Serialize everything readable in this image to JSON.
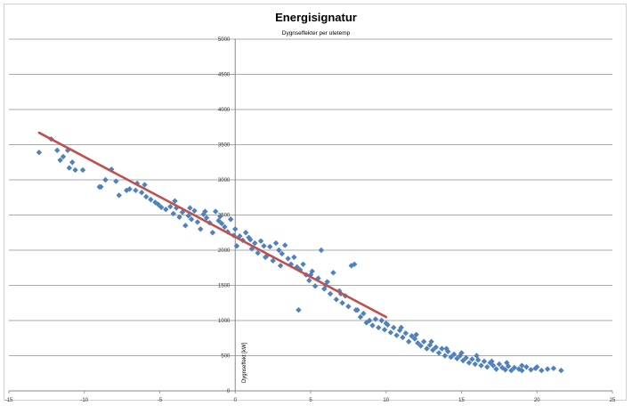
{
  "chart_data": {
    "type": "scatter",
    "title": "Energisignatur",
    "subtitle": "Dygnseffekter per utetemp",
    "xlabel": "",
    "ylabel": "Dygnseffekt [kW]",
    "xlim": [
      -15,
      25
    ],
    "ylim": [
      0,
      5000
    ],
    "xticks": [
      -15,
      -10,
      -5,
      0,
      5,
      10,
      15,
      20,
      25
    ],
    "yticks": [
      0,
      500,
      1000,
      1500,
      2000,
      2500,
      3000,
      3500,
      4000,
      4500,
      5000
    ],
    "grid": "horizontal",
    "legend": "none",
    "series": [
      {
        "kind": "points",
        "color": "#4f81bd",
        "points": [
          [
            -13.0,
            3390
          ],
          [
            -12.2,
            3580
          ],
          [
            -11.8,
            3420
          ],
          [
            -11.6,
            3280
          ],
          [
            -11.4,
            3330
          ],
          [
            -11.1,
            3420
          ],
          [
            -11.0,
            3170
          ],
          [
            -10.8,
            3250
          ],
          [
            -10.6,
            3140
          ],
          [
            -10.1,
            3140
          ],
          [
            -8.9,
            2900
          ],
          [
            -8.6,
            3000
          ],
          [
            -8.2,
            3150
          ],
          [
            -7.9,
            2980
          ],
          [
            -7.7,
            2780
          ],
          [
            -7.2,
            2850
          ],
          [
            -7.0,
            2870
          ],
          [
            -6.6,
            2850
          ],
          [
            -6.2,
            2820
          ],
          [
            -6.0,
            2930
          ],
          [
            -5.9,
            2760
          ],
          [
            -5.6,
            2720
          ],
          [
            -5.3,
            2680
          ],
          [
            -5.1,
            2650
          ],
          [
            -4.9,
            2610
          ],
          [
            -4.6,
            2580
          ],
          [
            -4.3,
            2620
          ],
          [
            -4.1,
            2520
          ],
          [
            -3.9,
            2600
          ],
          [
            -3.7,
            2470
          ],
          [
            -3.5,
            2540
          ],
          [
            -3.3,
            2350
          ],
          [
            -3.1,
            2490
          ],
          [
            -2.9,
            2440
          ],
          [
            -2.7,
            2560
          ],
          [
            -2.5,
            2400
          ],
          [
            -2.3,
            2300
          ],
          [
            -2.1,
            2510
          ],
          [
            -1.9,
            2460
          ],
          [
            -1.7,
            2390
          ],
          [
            -1.5,
            2250
          ],
          [
            -1.3,
            2550
          ],
          [
            -1.1,
            2420
          ],
          [
            -0.9,
            2380
          ],
          [
            -0.7,
            2330
          ],
          [
            -0.5,
            2260
          ],
          [
            -0.3,
            2440
          ],
          [
            -0.1,
            2210
          ],
          [
            0.1,
            2060
          ],
          [
            0.3,
            2200
          ],
          [
            0.5,
            2140
          ],
          [
            0.7,
            2250
          ],
          [
            0.9,
            2180
          ],
          [
            1.1,
            2020
          ],
          [
            1.3,
            2100
          ],
          [
            1.5,
            1960
          ],
          [
            1.7,
            2130
          ],
          [
            1.9,
            2060
          ],
          [
            2.1,
            1920
          ],
          [
            2.3,
            2050
          ],
          [
            2.5,
            1850
          ],
          [
            2.7,
            2100
          ],
          [
            2.9,
            2000
          ],
          [
            3.1,
            1950
          ],
          [
            3.3,
            2070
          ],
          [
            3.5,
            1880
          ],
          [
            3.7,
            1800
          ],
          [
            3.9,
            1900
          ],
          [
            4.1,
            1760
          ],
          [
            4.3,
            1720
          ],
          [
            4.5,
            1800
          ],
          [
            4.7,
            1650
          ],
          [
            4.9,
            1570
          ],
          [
            4.2,
            1150
          ],
          [
            5.1,
            1700
          ],
          [
            5.3,
            1490
          ],
          [
            5.5,
            1600
          ],
          [
            5.7,
            2000
          ],
          [
            5.9,
            1450
          ],
          [
            6.1,
            1550
          ],
          [
            6.3,
            1380
          ],
          [
            6.5,
            1680
          ],
          [
            6.7,
            1300
          ],
          [
            6.9,
            1420
          ],
          [
            7.1,
            1250
          ],
          [
            7.3,
            1350
          ],
          [
            7.5,
            1200
          ],
          [
            7.7,
            1780
          ],
          [
            7.9,
            1800
          ],
          [
            8.1,
            1150
          ],
          [
            8.3,
            1050
          ],
          [
            8.5,
            1100
          ],
          [
            8.7,
            970
          ],
          [
            8.9,
            1000
          ],
          [
            9.1,
            930
          ],
          [
            9.3,
            1020
          ],
          [
            9.5,
            900
          ],
          [
            9.7,
            1000
          ],
          [
            9.9,
            870
          ],
          [
            10.1,
            940
          ],
          [
            10.3,
            830
          ],
          [
            10.5,
            900
          ],
          [
            10.7,
            790
          ],
          [
            10.9,
            860
          ],
          [
            11.1,
            760
          ],
          [
            11.3,
            820
          ],
          [
            11.5,
            700
          ],
          [
            11.7,
            780
          ],
          [
            11.9,
            740
          ],
          [
            12.1,
            680
          ],
          [
            12.3,
            640
          ],
          [
            12.5,
            700
          ],
          [
            12.7,
            600
          ],
          [
            12.9,
            650
          ],
          [
            13.1,
            580
          ],
          [
            13.3,
            620
          ],
          [
            13.5,
            540
          ],
          [
            13.7,
            600
          ],
          [
            13.9,
            500
          ],
          [
            14.1,
            560
          ],
          [
            14.3,
            480
          ],
          [
            14.5,
            520
          ],
          [
            14.7,
            460
          ],
          [
            14.9,
            500
          ],
          [
            15.1,
            430
          ],
          [
            15.3,
            470
          ],
          [
            15.5,
            400
          ],
          [
            15.7,
            450
          ],
          [
            15.9,
            380
          ],
          [
            16.1,
            440
          ],
          [
            16.3,
            360
          ],
          [
            16.5,
            420
          ],
          [
            16.7,
            340
          ],
          [
            16.9,
            400
          ],
          [
            17.1,
            360
          ],
          [
            17.3,
            310
          ],
          [
            17.5,
            380
          ],
          [
            17.7,
            330
          ],
          [
            17.9,
            300
          ],
          [
            18.1,
            350
          ],
          [
            18.3,
            290
          ],
          [
            18.5,
            330
          ],
          [
            18.8,
            310
          ],
          [
            19.0,
            290
          ],
          [
            19.3,
            340
          ],
          [
            19.6,
            300
          ],
          [
            19.9,
            320
          ],
          [
            20.3,
            290
          ],
          [
            20.7,
            310
          ],
          [
            21.1,
            320
          ],
          [
            21.6,
            290
          ],
          [
            10.0,
            960
          ],
          [
            8.0,
            1150
          ],
          [
            7.0,
            1380
          ],
          [
            6.0,
            1500
          ],
          [
            5.0,
            1650
          ],
          [
            3.0,
            1780
          ],
          [
            2.0,
            1900
          ],
          [
            1.0,
            2150
          ],
          [
            0.0,
            2300
          ],
          [
            -1.0,
            2480
          ],
          [
            -2.0,
            2550
          ],
          [
            -3.0,
            2600
          ],
          [
            -4.0,
            2700
          ],
          [
            -6.5,
            2950
          ],
          [
            -9.0,
            2900
          ],
          [
            11.0,
            900
          ],
          [
            12.0,
            800
          ],
          [
            13.0,
            700
          ],
          [
            14.0,
            600
          ],
          [
            15.0,
            540
          ],
          [
            16.0,
            500
          ],
          [
            17.0,
            420
          ],
          [
            18.0,
            400
          ],
          [
            19.0,
            360
          ],
          [
            20.0,
            340
          ]
        ]
      },
      {
        "kind": "trendline",
        "color": "#c0504d",
        "points": [
          [
            -13.0,
            3670
          ],
          [
            10.0,
            1050
          ]
        ]
      }
    ]
  }
}
